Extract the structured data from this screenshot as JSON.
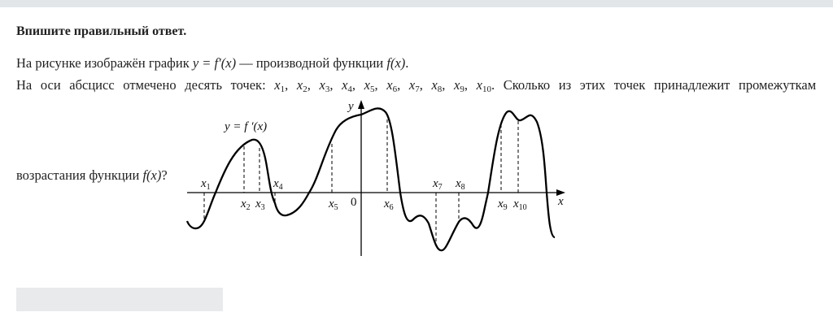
{
  "header": {
    "title": "Впишите правильный ответ."
  },
  "question": {
    "line1": {
      "text": "На рисунке изображён график ",
      "formula": "y = f′(x)",
      "mid": " —  производной функции ",
      "func": "f(x)",
      "end": "."
    },
    "line2": {
      "prefix": "На оси абсцисс отмечено десять точек:",
      "points": [
        "1",
        "2",
        "3",
        "4",
        "5",
        "6",
        "7",
        "8",
        "9",
        "10"
      ],
      "var": "x",
      "suffix": "Сколько из этих точек принадлежит промежуткам"
    },
    "line3": {
      "text": "возрастания функции ",
      "func": "f(x)",
      "end": "?"
    }
  },
  "figure": {
    "curve_label": "y = f ′(x)",
    "x_axis_label": "x",
    "y_axis_label": "y",
    "origin_label": "0",
    "point_var": "x",
    "points": [
      "1",
      "2",
      "3",
      "4",
      "5",
      "6",
      "7",
      "8",
      "9",
      "10"
    ]
  },
  "answer": {
    "value": ""
  }
}
